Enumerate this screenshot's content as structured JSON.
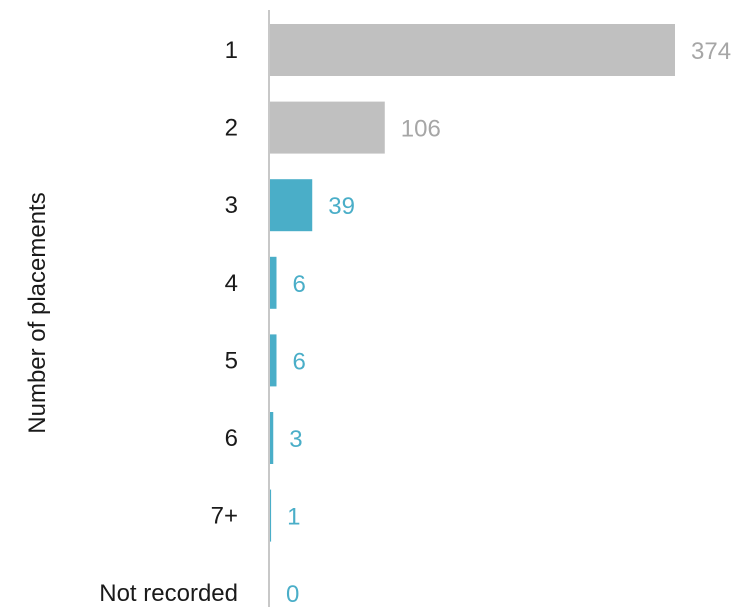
{
  "chart_data": {
    "type": "bar",
    "orientation": "horizontal",
    "ylabel": "Number of placements",
    "xlabel": "",
    "categories": [
      "1",
      "2",
      "3",
      "4",
      "5",
      "6",
      "7+",
      "Not recorded"
    ],
    "values": [
      374,
      106,
      39,
      6,
      6,
      3,
      1,
      0
    ],
    "xlim": [
      0,
      374
    ],
    "grid": false,
    "legend": "none",
    "colors": {
      "muted": "#c0c0c0",
      "highlight": "#4aaec8",
      "axis": "#c8c8c8",
      "muted_label": "#a6a6a6"
    },
    "highlight_from_index": 2
  }
}
